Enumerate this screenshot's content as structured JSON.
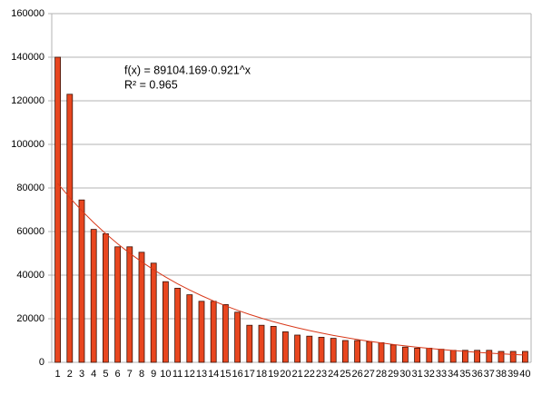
{
  "chart_data": {
    "type": "bar",
    "annotations": [
      "f(x) = 89104.169·0.921^x",
      "R² = 0.965"
    ],
    "categories": [
      "1",
      "2",
      "3",
      "4",
      "5",
      "6",
      "7",
      "8",
      "9",
      "10",
      "11",
      "12",
      "13",
      "14",
      "15",
      "16",
      "17",
      "18",
      "19",
      "20",
      "21",
      "22",
      "23",
      "24",
      "25",
      "26",
      "27",
      "28",
      "29",
      "30",
      "31",
      "32",
      "33",
      "34",
      "35",
      "36",
      "37",
      "38",
      "39",
      "40"
    ],
    "values": [
      140000,
      123000,
      74500,
      61000,
      59000,
      53000,
      53000,
      50500,
      45500,
      37000,
      34000,
      31000,
      28000,
      28000,
      26500,
      23000,
      17000,
      17000,
      16500,
      14000,
      12500,
      12000,
      11500,
      11000,
      10000,
      10000,
      9500,
      9000,
      8000,
      7000,
      6500,
      6500,
      6000,
      5500,
      5500,
      5500,
      5500,
      5000,
      5000,
      5000
    ],
    "color": "#e8461f",
    "trendline": {
      "color": "#d9391a",
      "values": [
        82065,
        75582,
        69611,
        64112,
        59047,
        54382,
        50086,
        46129,
        42485,
        39129,
        36038,
        33190,
        30568,
        28154,
        25929,
        23881,
        21994,
        20257,
        18656,
        17183,
        15825,
        14575,
        13424,
        12363,
        11387,
        10487,
        9659,
        8895,
        8193,
        7546,
        6949,
        6400,
        5895,
        5429,
        5000,
        4605,
        4241,
        3906,
        3598,
        3314
      ]
    },
    "ylim": [
      0,
      160000
    ],
    "yticks": [
      0,
      20000,
      40000,
      60000,
      80000,
      100000,
      120000,
      140000,
      160000
    ],
    "grid": true
  }
}
